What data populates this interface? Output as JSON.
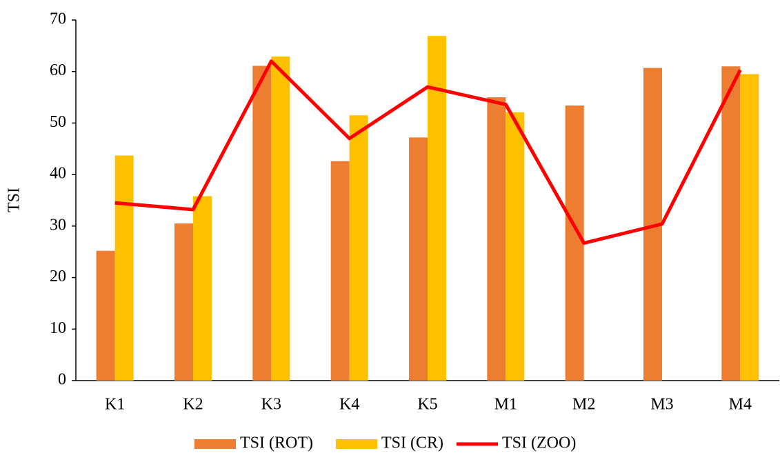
{
  "chart_data": {
    "type": "bar",
    "y_label": "TSI",
    "categories": [
      "K1",
      "K2",
      "K3",
      "K4",
      "K5",
      "M1",
      "M2",
      "M3",
      "M4"
    ],
    "series": [
      {
        "name": "TSI (ROT)",
        "type": "bar",
        "color": "#ed7d31",
        "values": [
          25.2,
          30.5,
          61.1,
          42.6,
          47.2,
          55.0,
          53.4,
          60.7,
          61.0
        ]
      },
      {
        "name": "TSI (CR)",
        "type": "bar",
        "color": "#ffc000",
        "values": [
          43.7,
          35.8,
          62.9,
          51.5,
          66.9,
          52.1,
          null,
          null,
          59.5
        ]
      },
      {
        "name": "TSI (ZOO)",
        "type": "line",
        "color": "#ff0000",
        "values": [
          34.5,
          33.2,
          62.0,
          47.0,
          57.0,
          53.6,
          26.7,
          30.4,
          60.3
        ]
      }
    ],
    "ylim": [
      0,
      70
    ],
    "yticks": [
      0,
      10,
      20,
      30,
      40,
      50,
      60,
      70
    ],
    "grid": false,
    "legend": "bottom"
  }
}
